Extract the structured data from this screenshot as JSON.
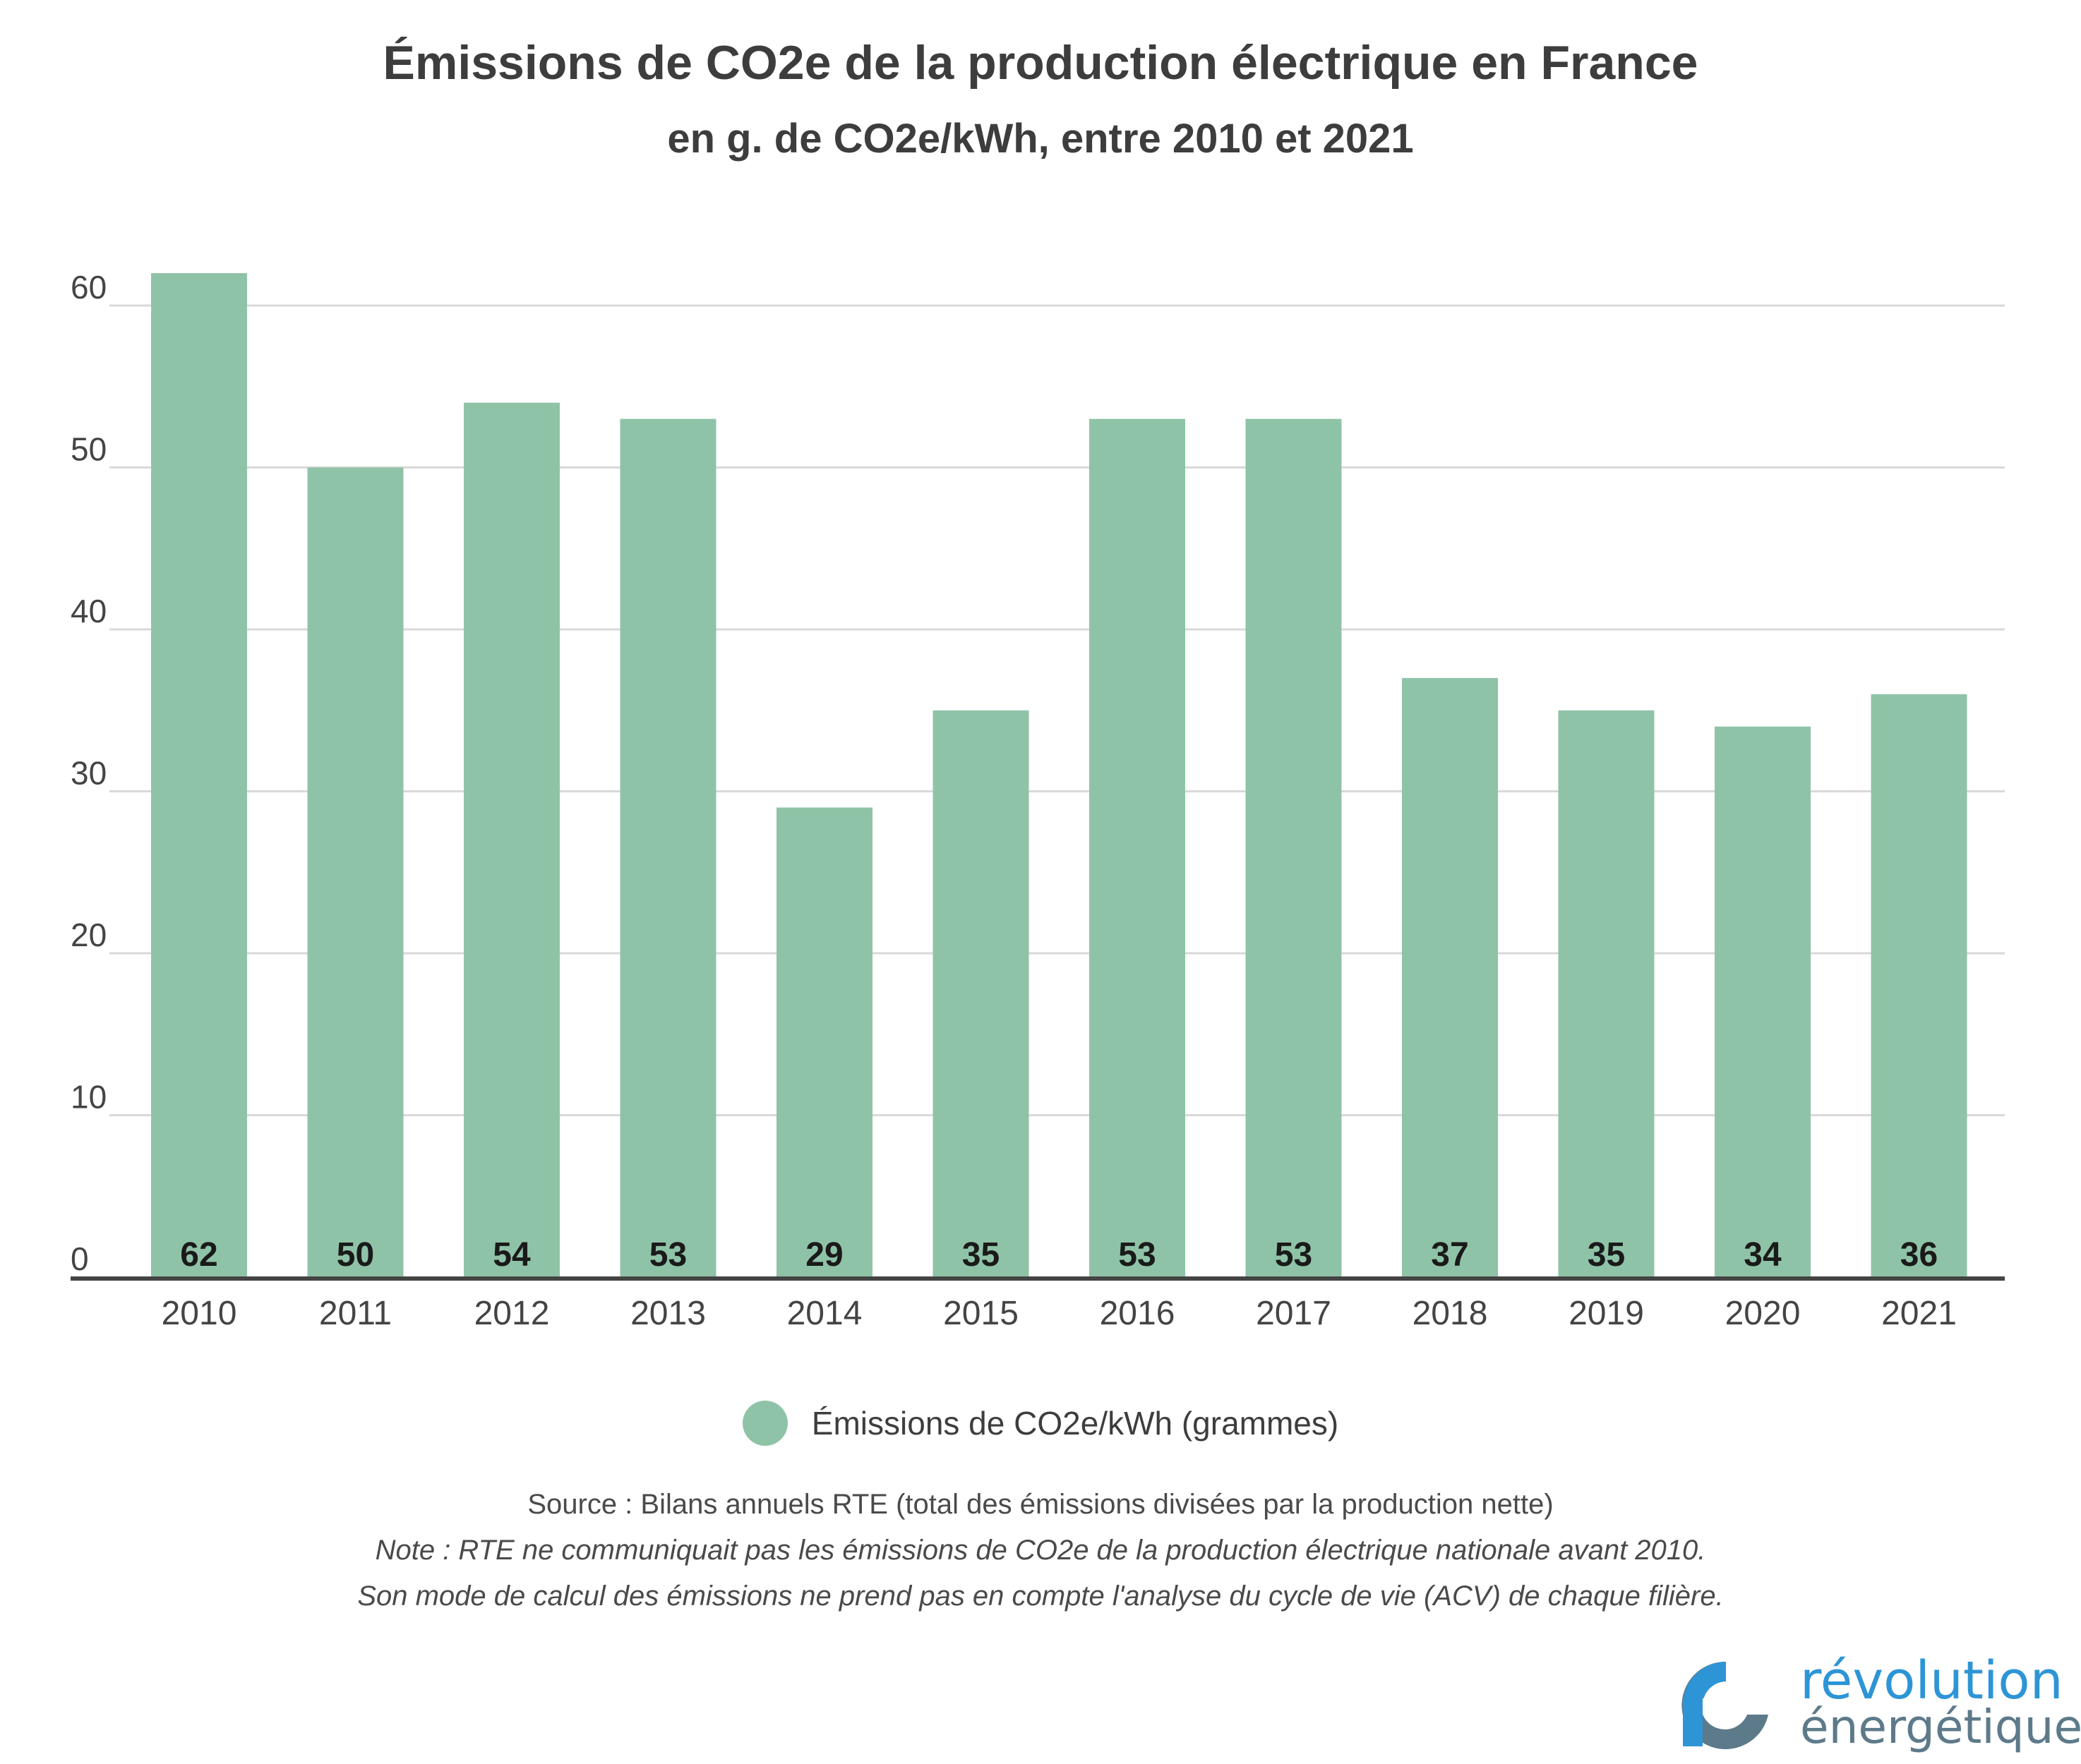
{
  "title": "Émissions de CO2e de la production électrique en France",
  "subtitle": "en g. de CO2e/kWh, entre 2010 et 2021",
  "chart_data": {
    "type": "bar",
    "categories": [
      "2010",
      "2011",
      "2012",
      "2013",
      "2014",
      "2015",
      "2016",
      "2017",
      "2018",
      "2019",
      "2020",
      "2021"
    ],
    "series": [
      {
        "name": "Émissions de CO2e/kWh (grammes)",
        "values": [
          62,
          50,
          54,
          53,
          29,
          35,
          53,
          53,
          37,
          35,
          34,
          36
        ],
        "color": "#8fc3a7"
      }
    ],
    "ylim": [
      0,
      60
    ],
    "yticks": [
      0,
      10,
      20,
      30,
      40,
      50,
      60
    ],
    "grid": true,
    "legend_position": "bottom",
    "data_labels": "inside-bottom"
  },
  "legend": {
    "label": "Émissions de CO2e/kWh (grammes)"
  },
  "source": "Source : Bilans annuels RTE (total des émissions divisées par la production nette)",
  "note_line1": "Note : RTE ne communiquait pas les émissions de CO2e de la production électrique nationale avant 2010.",
  "note_line2": "Son mode de calcul des émissions ne prend pas en compte l'analyse du cycle de vie (ACV) de chaque filière.",
  "logo": {
    "line1": "révolution",
    "line2": "énergétique"
  },
  "colors": {
    "bar": "#8fc3a7",
    "grid": "#d9d9d9",
    "axis": "#444444",
    "logo_blue": "#2d95d6",
    "logo_gray": "#5d7a8a"
  }
}
